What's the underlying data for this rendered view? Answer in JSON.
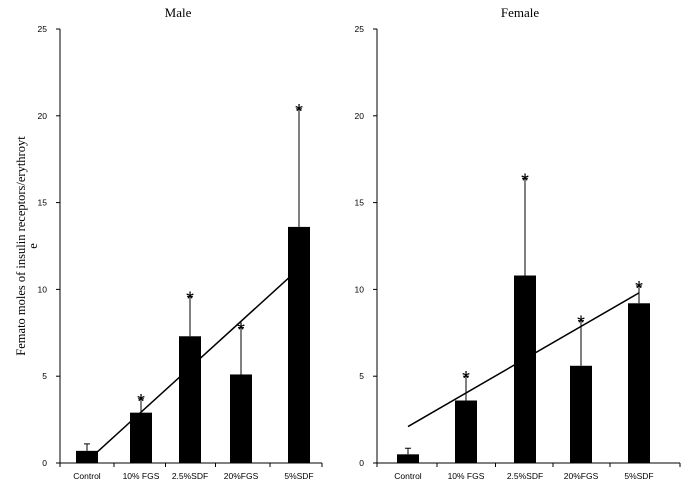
{
  "figure": {
    "ylabel_line1": "Femato moles of insulin receptors/erythroyt",
    "ylabel_line2": "e"
  },
  "chart_data": [
    {
      "type": "bar",
      "title": "Male",
      "categories": [
        "Control",
        "10% FGS",
        "2.5%SDF",
        "20%FGS",
        "5%SDF"
      ],
      "values": [
        0.7,
        2.9,
        7.3,
        5.1,
        13.6
      ],
      "error_plus": [
        0.4,
        0.8,
        2.3,
        2.7,
        6.8
      ],
      "significant": [
        false,
        true,
        true,
        true,
        true
      ],
      "ylim": [
        0,
        25
      ],
      "yticks": [
        0,
        5,
        10,
        15,
        20,
        25
      ],
      "trendline": {
        "x_from": 0,
        "x_to": 4,
        "y_from": 0.1,
        "y_to": 11.2
      },
      "ylabel": "Femato moles of insulin receptors/erythroyte",
      "grid": false
    },
    {
      "type": "bar",
      "title": "Female",
      "categories": [
        "Control",
        "10% FGS",
        "2.5%SDF",
        "20%FGS",
        "5%SDF"
      ],
      "values": [
        0.5,
        3.6,
        10.8,
        5.6,
        9.2
      ],
      "error_plus": [
        0.35,
        1.4,
        5.6,
        2.6,
        1.0
      ],
      "significant": [
        false,
        true,
        true,
        true,
        true
      ],
      "ylim": [
        0,
        25
      ],
      "yticks": [
        0,
        5,
        10,
        15,
        20,
        25
      ],
      "trendline": {
        "x_from": 0,
        "x_to": 4,
        "y_from": 2.1,
        "y_to": 9.8
      },
      "grid": false
    }
  ]
}
